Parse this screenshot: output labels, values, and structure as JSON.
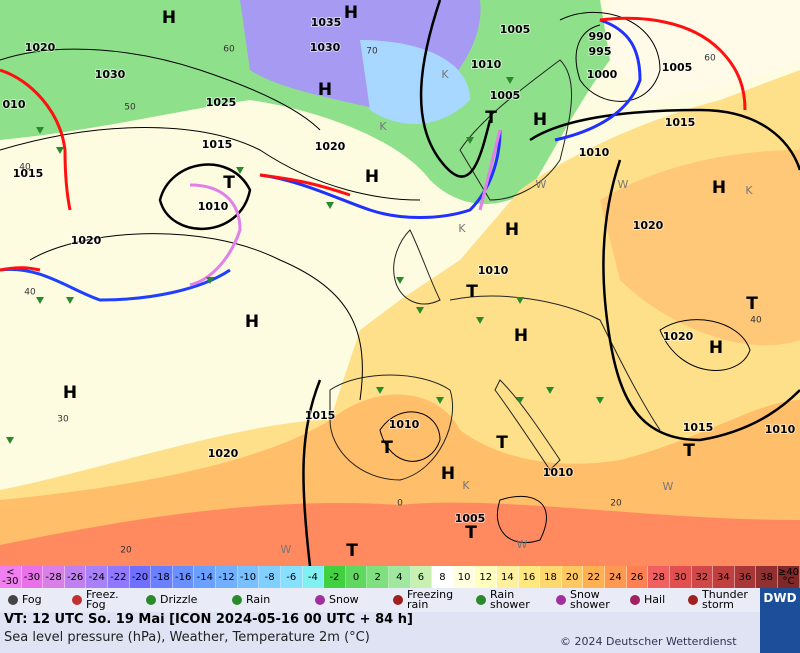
{
  "map": {
    "labels": [
      "H",
      "H",
      "H",
      "H",
      "H",
      "H",
      "H",
      "H",
      "H",
      "H",
      "H",
      "H",
      "T",
      "T",
      "T",
      "T",
      "T",
      "T",
      "T",
      "T",
      "T",
      "1035",
      "1030",
      "1030",
      "1020",
      "1025",
      "1015",
      "1020",
      "1015",
      "010",
      "1010",
      "1020",
      "1005",
      "1010",
      "1005",
      "1000",
      "995",
      "990",
      "1005",
      "1015",
      "1010",
      "1020",
      "1010",
      "1020",
      "1015",
      "1010",
      "1020",
      "1015",
      "1010",
      "1010",
      "1005",
      "60",
      "70",
      "50",
      "40",
      "40",
      "30",
      "20",
      "0",
      "20",
      "60",
      "40",
      "K",
      "K",
      "K",
      "K",
      "K",
      "W",
      "W",
      "W",
      "W",
      "W"
    ]
  },
  "scale": {
    "low": "< -30",
    "ticks": [
      "-30",
      "-28",
      "-26",
      "-24",
      "-22",
      "-20",
      "-18",
      "-16",
      "-14",
      "-12",
      "-10",
      "-8",
      "-6",
      "-4",
      "-2",
      "0",
      "2",
      "4",
      "6",
      "8",
      "10",
      "12",
      "14",
      "16",
      "18",
      "20",
      "22",
      "24",
      "26",
      "28",
      "30",
      "32",
      "34",
      "36",
      "38"
    ],
    "high": "≥40 °C"
  },
  "legend": [
    "Fog",
    "Freez. Fog",
    "Drizzle",
    "Rain",
    "Snow",
    "Freezing rain",
    "Rain shower",
    "Snow shower",
    "Hail",
    "Thunder storm"
  ],
  "footer": {
    "valid": "VT: 12 UTC So.  19 Mai [ICON 2024-05-16  00 UTC + 84 h]",
    "description": "Sea level pressure (hPa), Weather, Temperature 2m (°C)",
    "copyright": "© 2024 Deutscher Wetterdienst",
    "logo": "DWD"
  }
}
